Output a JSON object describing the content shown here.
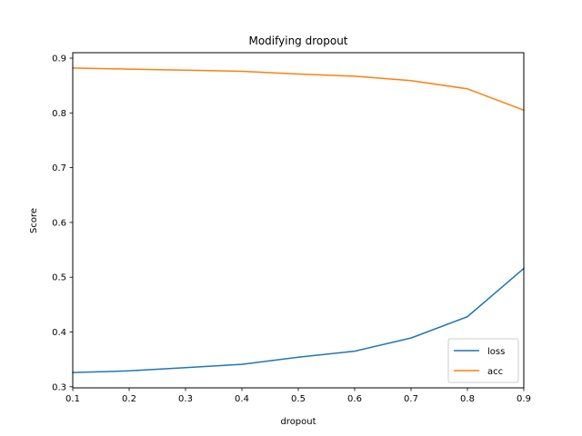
{
  "chart_data": {
    "type": "line",
    "title": "Modifying dropout",
    "xlabel": "dropout",
    "ylabel": "Score",
    "x": [
      0.1,
      0.2,
      0.3,
      0.4,
      0.5,
      0.6,
      0.7,
      0.8,
      0.9
    ],
    "series": [
      {
        "name": "loss",
        "color": "#1f77b4",
        "values": [
          0.326,
          0.329,
          0.335,
          0.341,
          0.354,
          0.365,
          0.389,
          0.428,
          0.516
        ]
      },
      {
        "name": "acc",
        "color": "#ff7f0e",
        "values": [
          0.882,
          0.88,
          0.878,
          0.876,
          0.871,
          0.867,
          0.859,
          0.844,
          0.805
        ]
      }
    ],
    "xlim": [
      0.1,
      0.9
    ],
    "ylim": [
      0.298,
      0.91
    ],
    "xticks": [
      "0.1",
      "0.2",
      "0.3",
      "0.4",
      "0.5",
      "0.6",
      "0.7",
      "0.8",
      "0.9"
    ],
    "yticks": [
      "0.3",
      "0.4",
      "0.5",
      "0.6",
      "0.7",
      "0.8",
      "0.9"
    ],
    "grid": false,
    "legend_position": "lower-right"
  }
}
